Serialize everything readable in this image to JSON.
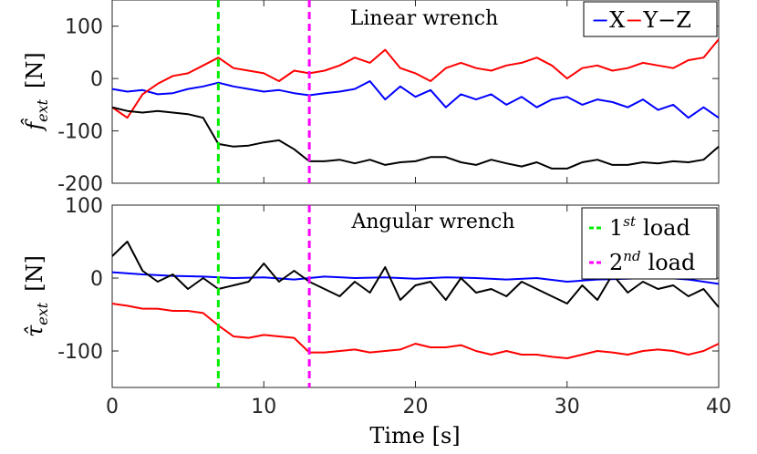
{
  "colors": {
    "x": "#0000ff",
    "y": "#ff0000",
    "z": "#000000",
    "load1": "#00ee00",
    "load2": "#ff00ff"
  },
  "chart_data": [
    {
      "type": "line",
      "title": "Linear wrench",
      "ylabel_symbol": "f̂",
      "ylabel_sub": "ext",
      "ylabel_unit": "[N]",
      "xlim": [
        0,
        40
      ],
      "ylim": [
        -200,
        150
      ],
      "yticks": [
        100,
        0,
        -100,
        -200
      ],
      "ytick_labels": [
        "100",
        "0",
        "-100",
        "-200"
      ],
      "legend": {
        "x": "X",
        "sep1": "−",
        "y": "Y",
        "sep2": "−",
        "z": "Z"
      },
      "series": [
        {
          "name": "X",
          "color": "#0000ff",
          "x": [
            0,
            1,
            2,
            3,
            4,
            5,
            6,
            7,
            8,
            9,
            10,
            11,
            12,
            13,
            14,
            15,
            16,
            17,
            18,
            19,
            20,
            21,
            22,
            23,
            24,
            25,
            26,
            27,
            28,
            29,
            30,
            31,
            32,
            33,
            34,
            35,
            36,
            37,
            38,
            39,
            40
          ],
          "y": [
            -20,
            -25,
            -22,
            -30,
            -28,
            -20,
            -15,
            -8,
            -15,
            -20,
            -25,
            -22,
            -28,
            -32,
            -28,
            -25,
            -20,
            -5,
            -40,
            -15,
            -35,
            -22,
            -55,
            -30,
            -40,
            -30,
            -50,
            -35,
            -55,
            -40,
            -35,
            -50,
            -40,
            -45,
            -55,
            -40,
            -60,
            -50,
            -75,
            -55,
            -75
          ]
        },
        {
          "name": "Y",
          "color": "#ff0000",
          "x": [
            0,
            1,
            2,
            3,
            4,
            5,
            6,
            7,
            8,
            9,
            10,
            11,
            12,
            13,
            14,
            15,
            16,
            17,
            18,
            19,
            20,
            21,
            22,
            23,
            24,
            25,
            26,
            27,
            28,
            29,
            30,
            31,
            32,
            33,
            34,
            35,
            36,
            37,
            38,
            39,
            40
          ],
          "y": [
            -55,
            -75,
            -30,
            -10,
            5,
            10,
            25,
            40,
            20,
            15,
            10,
            -5,
            15,
            10,
            15,
            25,
            40,
            30,
            55,
            20,
            10,
            -5,
            20,
            30,
            20,
            15,
            25,
            30,
            40,
            25,
            0,
            20,
            25,
            15,
            20,
            30,
            25,
            20,
            35,
            40,
            75
          ]
        },
        {
          "name": "Z",
          "color": "#000000",
          "x": [
            0,
            1,
            2,
            3,
            4,
            5,
            6,
            7,
            8,
            9,
            10,
            11,
            12,
            13,
            14,
            15,
            16,
            17,
            18,
            19,
            20,
            21,
            22,
            23,
            24,
            25,
            26,
            27,
            28,
            29,
            30,
            31,
            32,
            33,
            34,
            35,
            36,
            37,
            38,
            39,
            40
          ],
          "y": [
            -55,
            -62,
            -65,
            -62,
            -65,
            -68,
            -75,
            -125,
            -130,
            -128,
            -122,
            -118,
            -135,
            -158,
            -158,
            -155,
            -162,
            -155,
            -165,
            -160,
            -158,
            -150,
            -150,
            -160,
            -165,
            -155,
            -162,
            -168,
            -160,
            -172,
            -172,
            -160,
            -155,
            -165,
            -165,
            -160,
            -162,
            -158,
            -160,
            -155,
            -130
          ]
        }
      ]
    },
    {
      "type": "line",
      "title": "Angular wrench",
      "ylabel_symbol": "τ̂",
      "ylabel_sub": "ext",
      "ylabel_unit": "[N]",
      "xlabel_text": "Time",
      "xlabel_unit": "[s]",
      "xlim": [
        0,
        40
      ],
      "ylim": [
        -150,
        100
      ],
      "yticks": [
        100,
        0,
        -100
      ],
      "ytick_labels": [
        "100",
        "0",
        "-100"
      ],
      "xticks": [
        0,
        10,
        20,
        30,
        40
      ],
      "xtick_labels": [
        "0",
        "10",
        "20",
        "30",
        "40"
      ],
      "legend": {
        "load1": "1",
        "load1_sup": "st",
        "load1_word": "load",
        "load2": "2",
        "load2_sup": "nd",
        "load2_word": "load"
      },
      "series": [
        {
          "name": "X",
          "color": "#0000ff",
          "x": [
            0,
            2,
            4,
            6,
            8,
            10,
            12,
            14,
            16,
            18,
            20,
            22,
            24,
            26,
            28,
            30,
            32,
            34,
            36,
            38,
            40
          ],
          "y": [
            8,
            5,
            3,
            2,
            0,
            1,
            -2,
            2,
            0,
            1,
            -1,
            1,
            0,
            -2,
            0,
            -5,
            -2,
            -1,
            1,
            -2,
            -8
          ]
        },
        {
          "name": "Y",
          "color": "#ff0000",
          "x": [
            0,
            1,
            2,
            3,
            4,
            5,
            6,
            7,
            8,
            9,
            10,
            11,
            12,
            13,
            14,
            15,
            16,
            17,
            18,
            19,
            20,
            21,
            22,
            23,
            24,
            25,
            26,
            27,
            28,
            29,
            30,
            31,
            32,
            33,
            34,
            35,
            36,
            37,
            38,
            39,
            40
          ],
          "y": [
            -35,
            -38,
            -42,
            -42,
            -45,
            -45,
            -48,
            -65,
            -80,
            -82,
            -78,
            -80,
            -82,
            -102,
            -102,
            -100,
            -98,
            -102,
            -100,
            -98,
            -90,
            -95,
            -95,
            -92,
            -100,
            -105,
            -100,
            -105,
            -105,
            -108,
            -110,
            -105,
            -100,
            -102,
            -105,
            -100,
            -98,
            -100,
            -105,
            -100,
            -90
          ]
        },
        {
          "name": "Z",
          "color": "#000000",
          "x": [
            0,
            1,
            2,
            3,
            4,
            5,
            6,
            7,
            8,
            9,
            10,
            11,
            12,
            13,
            14,
            15,
            16,
            17,
            18,
            19,
            20,
            21,
            22,
            23,
            24,
            25,
            26,
            27,
            28,
            29,
            30,
            31,
            32,
            33,
            34,
            35,
            36,
            37,
            38,
            39,
            40
          ],
          "y": [
            30,
            50,
            10,
            -5,
            5,
            -15,
            0,
            -15,
            -10,
            -5,
            20,
            -5,
            10,
            -5,
            -15,
            -25,
            -5,
            -20,
            15,
            -30,
            -10,
            -5,
            -30,
            0,
            -20,
            -15,
            -25,
            -5,
            -15,
            -25,
            -35,
            -10,
            -30,
            5,
            -20,
            -5,
            -15,
            -10,
            -25,
            -15,
            -40
          ]
        }
      ],
      "vlines": [
        {
          "name": "1st load",
          "x": 7,
          "color": "#00ee00"
        },
        {
          "name": "2nd load",
          "x": 13,
          "color": "#ff00ff"
        }
      ]
    }
  ]
}
